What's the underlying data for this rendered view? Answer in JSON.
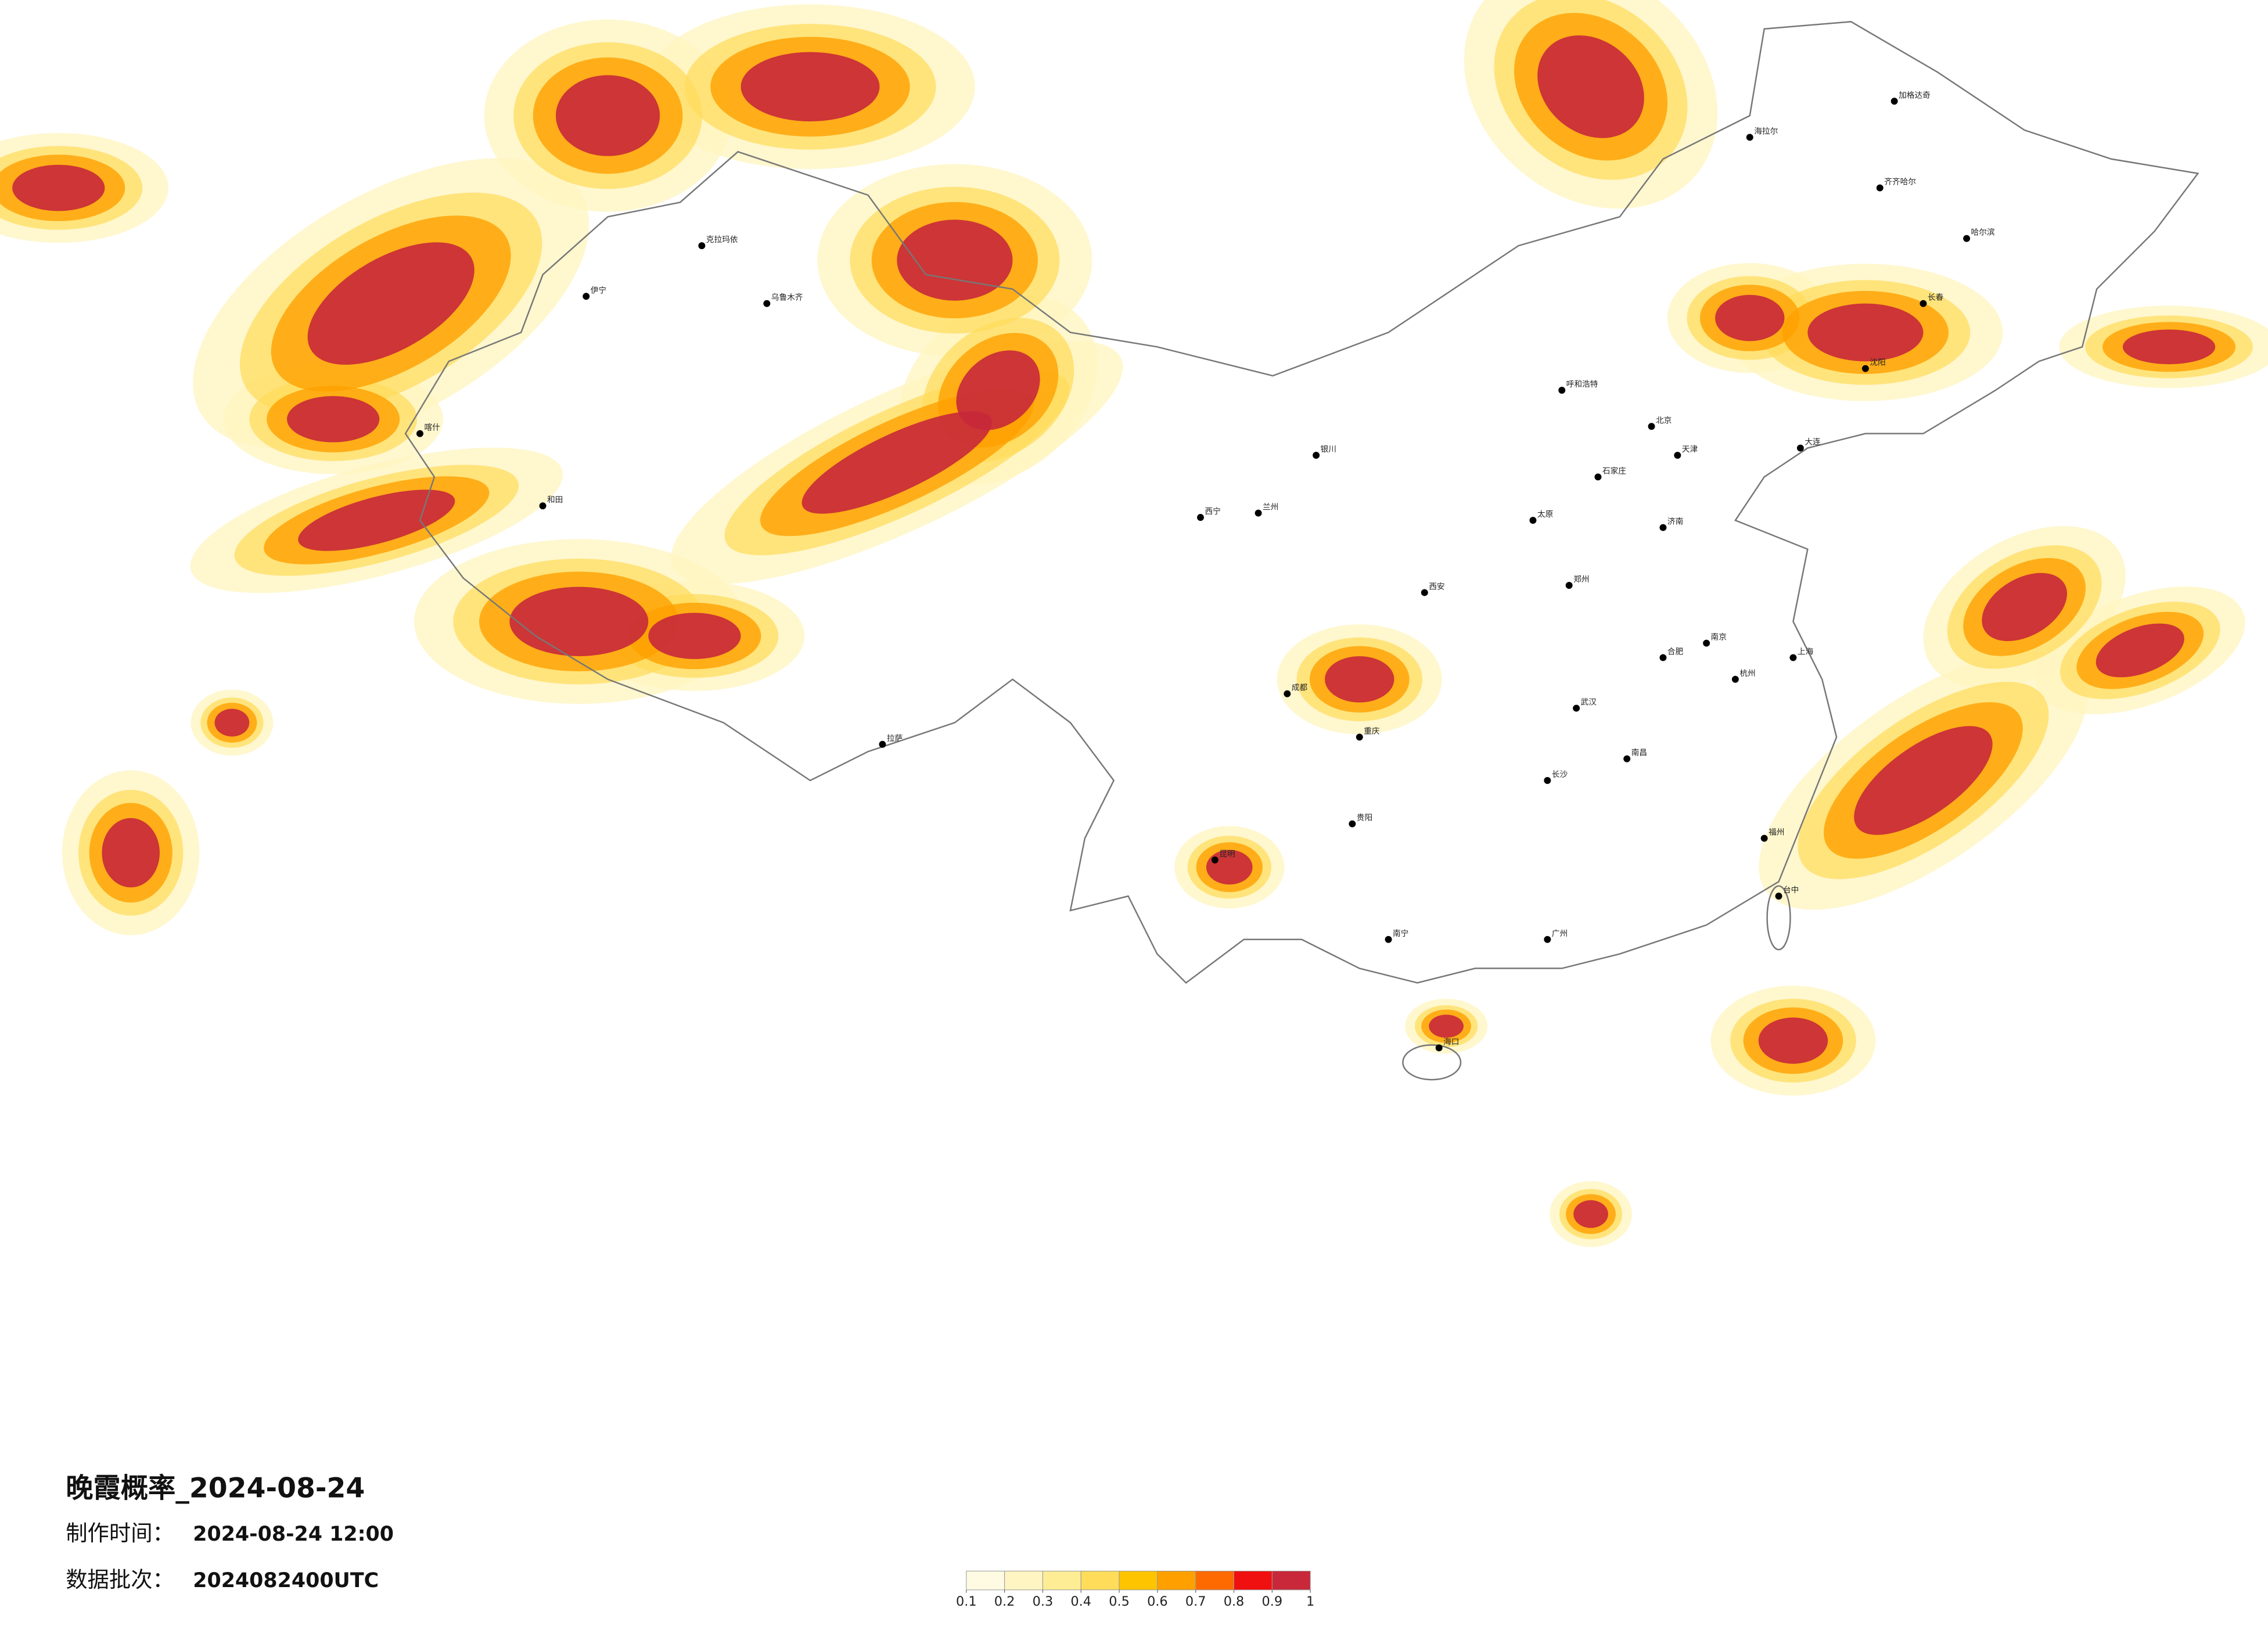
{
  "title": "晚霞概率_2024-08-24",
  "info": [
    {
      "label": "制作时间：",
      "value": "2024-08-24 12:00"
    },
    {
      "label": "数据批次：",
      "value": "2024082400UTC"
    }
  ],
  "legend": {
    "ticks": [
      0.1,
      0.2,
      0.3,
      0.4,
      0.5,
      0.6,
      0.7,
      0.8,
      0.9,
      1
    ],
    "colors": [
      "#fffbe3",
      "#fff5c2",
      "#ffed96",
      "#ffdc5a",
      "#ffc400",
      "#ffa000",
      "#ff6a00",
      "#f01010",
      "#c8283a"
    ]
  },
  "cities": [
    "北京",
    "天津",
    "石家庄",
    "太原",
    "济南",
    "郑州",
    "西安",
    "兰州",
    "西宁",
    "银川",
    "呼和浩特",
    "乌鲁木齐",
    "拉萨",
    "成都",
    "重庆",
    "贵阳",
    "昆明",
    "南宁",
    "广州",
    "福州",
    "台中",
    "杭州",
    "上海",
    "南京",
    "合肥",
    "武汉",
    "长沙",
    "南昌",
    "哈尔滨",
    "长春",
    "沈阳",
    "大连",
    "海口",
    "喀什",
    "和田",
    "伊宁",
    "克拉玛依",
    "齐齐哈尔",
    "海拉尔",
    "加格达奇"
  ]
}
